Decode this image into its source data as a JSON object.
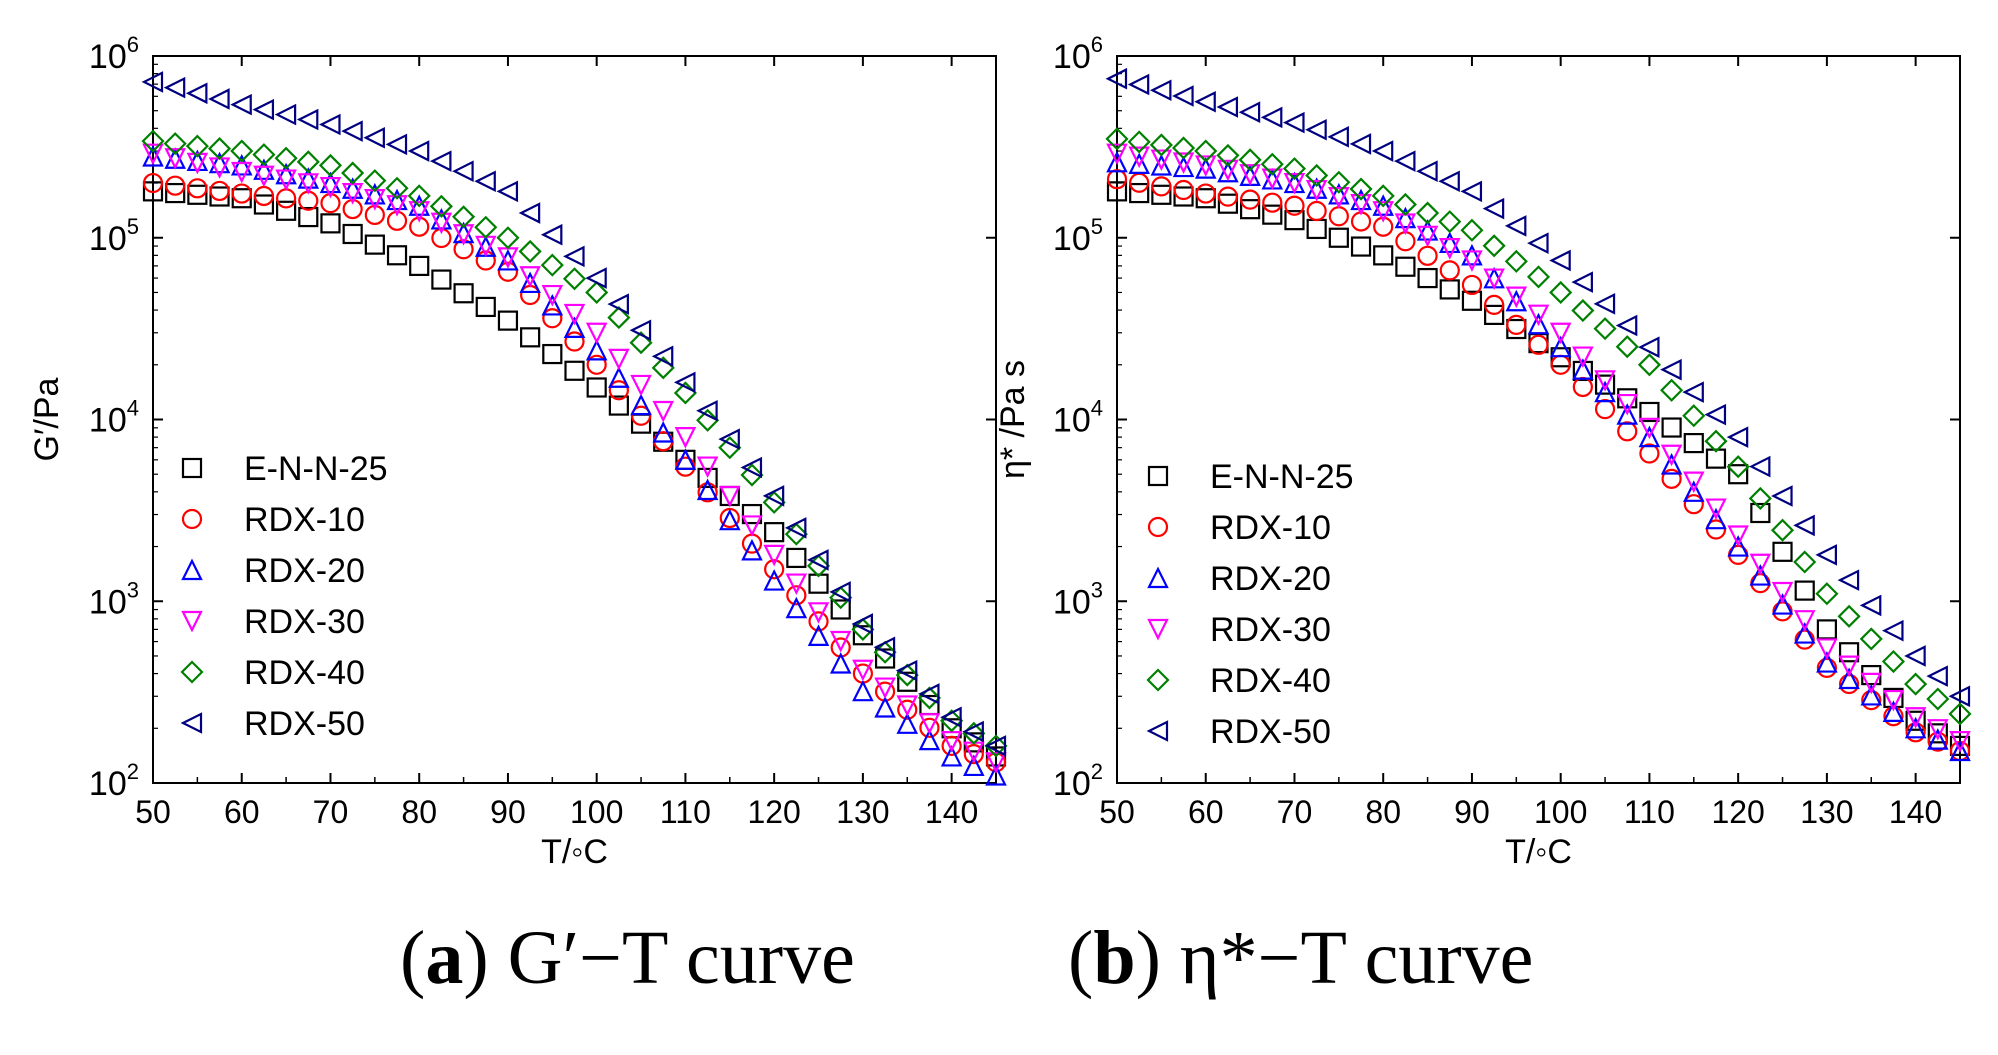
{
  "chart_data": [
    {
      "type": "scatter",
      "panel": "a",
      "caption_letter": "a",
      "caption_text": "G′−T curve",
      "xlabel": "T/◦C",
      "ylabel": "G′/Pa",
      "xlim": [
        50,
        145
      ],
      "ylim": [
        100,
        1000000
      ],
      "yscale": "log",
      "xticks": [
        "50",
        "60",
        "70",
        "80",
        "90",
        "100",
        "110",
        "120",
        "130",
        "140"
      ],
      "yticks": [
        {
          "base": "10",
          "exp": "2",
          "value": 100
        },
        {
          "base": "10",
          "exp": "3",
          "value": 1000
        },
        {
          "base": "10",
          "exp": "4",
          "value": 10000
        },
        {
          "base": "10",
          "exp": "5",
          "value": 100000
        },
        {
          "base": "10",
          "exp": "6",
          "value": 1000000
        }
      ],
      "legend_position": "lower-left",
      "grid": false,
      "series": [
        {
          "name": "E-N-N-25",
          "marker": "square",
          "color": "#000000",
          "x": [
            50,
            60,
            70,
            80,
            90,
            100,
            110,
            120,
            130,
            140,
            145
          ],
          "y": [
            180000,
            165000,
            120000,
            70000,
            35000,
            15000,
            6000,
            2400,
            650,
            200,
            140
          ]
        },
        {
          "name": "RDX-10",
          "marker": "circle",
          "color": "#ff0000",
          "x": [
            50,
            60,
            70,
            80,
            90,
            100,
            110,
            120,
            130,
            140,
            145
          ],
          "y": [
            200000,
            175000,
            155000,
            115000,
            65000,
            20000,
            5500,
            1500,
            400,
            160,
            130
          ]
        },
        {
          "name": "RDX-20",
          "marker": "triangle-up",
          "color": "#0000ff",
          "x": [
            50,
            60,
            70,
            80,
            90,
            100,
            110,
            120,
            130,
            140,
            145
          ],
          "y": [
            280000,
            250000,
            200000,
            150000,
            75000,
            24000,
            6000,
            1300,
            320,
            140,
            110
          ]
        },
        {
          "name": "RDX-30",
          "marker": "triangle-down",
          "color": "#ff00ff",
          "x": [
            50,
            60,
            70,
            80,
            90,
            100,
            110,
            120,
            130,
            140,
            145
          ],
          "y": [
            290000,
            230000,
            190000,
            140000,
            78000,
            30000,
            8000,
            1800,
            420,
            170,
            130
          ]
        },
        {
          "name": "RDX-40",
          "marker": "diamond",
          "color": "#008000",
          "x": [
            50,
            60,
            70,
            80,
            90,
            100,
            110,
            120,
            130,
            140,
            145
          ],
          "y": [
            340000,
            300000,
            250000,
            170000,
            100000,
            50000,
            14000,
            3500,
            700,
            220,
            160
          ]
        },
        {
          "name": "RDX-50",
          "marker": "triangle-left",
          "color": "#000080",
          "x": [
            50,
            60,
            70,
            80,
            90,
            100,
            110,
            120,
            130,
            140,
            145
          ],
          "y": [
            720000,
            540000,
            420000,
            300000,
            180000,
            60000,
            16000,
            3800,
            750,
            230,
            160
          ]
        }
      ]
    },
    {
      "type": "scatter",
      "panel": "b",
      "caption_letter": "b",
      "caption_text": "η*−T curve",
      "xlabel": "T/◦C",
      "ylabel": "η* /Pa s",
      "xlim": [
        50,
        145
      ],
      "ylim": [
        100,
        1000000
      ],
      "yscale": "log",
      "xticks": [
        "50",
        "60",
        "70",
        "80",
        "90",
        "100",
        "110",
        "120",
        "130",
        "140"
      ],
      "yticks": [
        {
          "base": "10",
          "exp": "2",
          "value": 100
        },
        {
          "base": "10",
          "exp": "3",
          "value": 1000
        },
        {
          "base": "10",
          "exp": "4",
          "value": 10000
        },
        {
          "base": "10",
          "exp": "5",
          "value": 100000
        },
        {
          "base": "10",
          "exp": "6",
          "value": 1000000
        }
      ],
      "legend_position": "lower-left",
      "grid": false,
      "series": [
        {
          "name": "E-N-N-25",
          "marker": "square",
          "color": "#000000",
          "x": [
            50,
            60,
            70,
            80,
            90,
            100,
            110,
            120,
            130,
            140,
            145
          ],
          "y": [
            180000,
            165000,
            125000,
            80000,
            45000,
            22000,
            11000,
            5000,
            700,
            220,
            160
          ]
        },
        {
          "name": "RDX-10",
          "marker": "circle",
          "color": "#ff0000",
          "x": [
            50,
            60,
            70,
            80,
            90,
            100,
            110,
            120,
            130,
            140,
            145
          ],
          "y": [
            210000,
            175000,
            150000,
            115000,
            55000,
            20000,
            6500,
            1800,
            430,
            190,
            150
          ]
        },
        {
          "name": "RDX-20",
          "marker": "triangle-up",
          "color": "#0000ff",
          "x": [
            50,
            60,
            70,
            80,
            90,
            100,
            110,
            120,
            130,
            140,
            145
          ],
          "y": [
            260000,
            240000,
            200000,
            150000,
            80000,
            25000,
            8000,
            2000,
            460,
            200,
            150
          ]
        },
        {
          "name": "RDX-30",
          "marker": "triangle-down",
          "color": "#ff00ff",
          "x": [
            50,
            60,
            70,
            80,
            90,
            100,
            110,
            120,
            130,
            140,
            145
          ],
          "y": [
            290000,
            250000,
            200000,
            140000,
            75000,
            30000,
            9000,
            2300,
            550,
            230,
            170
          ]
        },
        {
          "name": "RDX-40",
          "marker": "diamond",
          "color": "#008000",
          "x": [
            50,
            60,
            70,
            80,
            90,
            100,
            110,
            120,
            130,
            140,
            145
          ],
          "y": [
            350000,
            300000,
            240000,
            170000,
            110000,
            50000,
            20000,
            5500,
            1100,
            350,
            240
          ]
        },
        {
          "name": "RDX-50",
          "marker": "triangle-left",
          "color": "#000080",
          "x": [
            50,
            60,
            70,
            80,
            90,
            100,
            110,
            120,
            130,
            140,
            145
          ],
          "y": [
            750000,
            560000,
            430000,
            300000,
            180000,
            75000,
            25000,
            8000,
            1800,
            500,
            300
          ]
        }
      ]
    }
  ]
}
